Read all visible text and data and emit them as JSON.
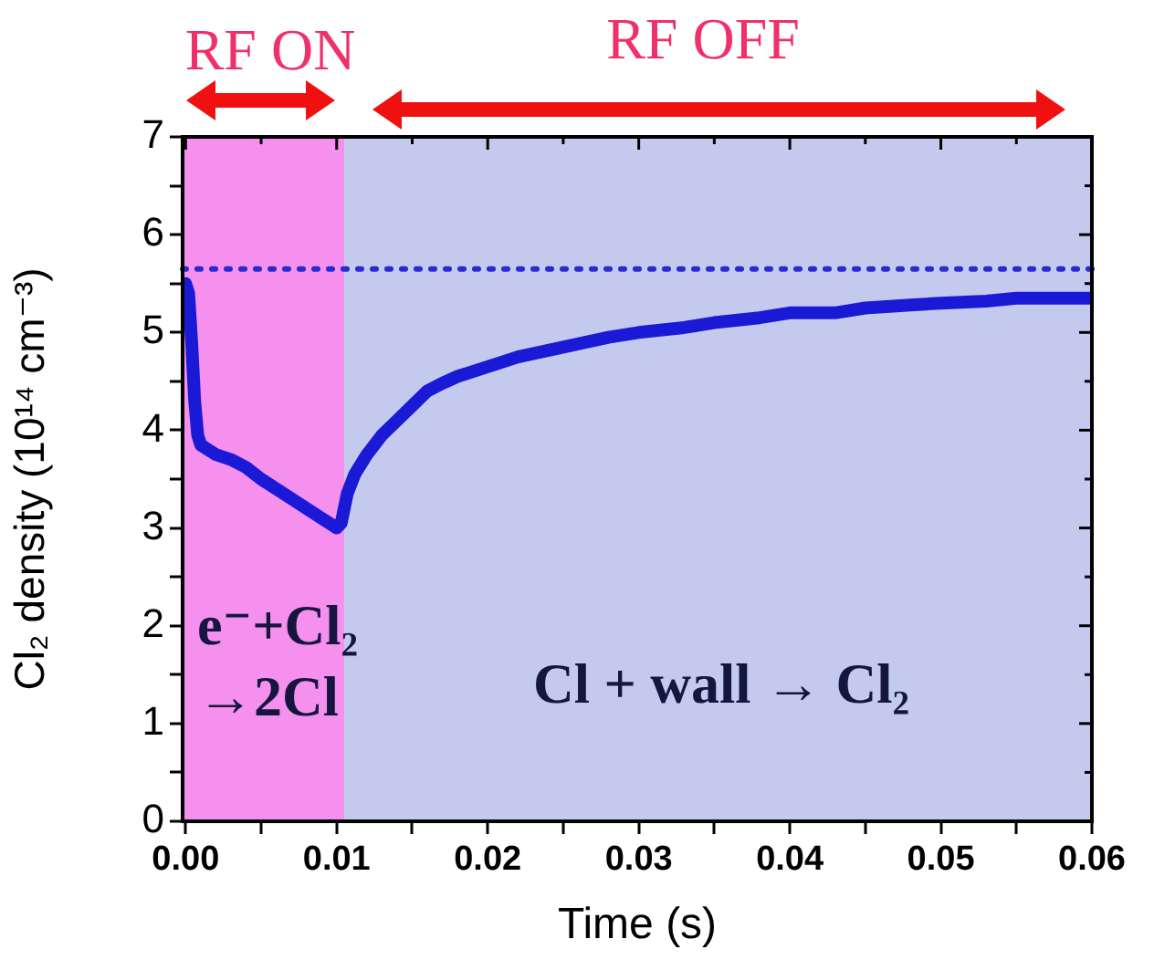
{
  "chart_data": {
    "type": "line",
    "xlabel": "Time (s)",
    "ylabel": "Cl₂ density (10¹⁴ cm⁻³)",
    "x": [
      0,
      0.0002,
      0.0004,
      0.0006,
      0.0008,
      0.001,
      0.0015,
      0.002,
      0.003,
      0.004,
      0.005,
      0.006,
      0.007,
      0.008,
      0.009,
      0.0095,
      0.01,
      0.0103,
      0.0107,
      0.0112,
      0.012,
      0.013,
      0.014,
      0.015,
      0.016,
      0.017,
      0.018,
      0.02,
      0.022,
      0.025,
      0.028,
      0.03,
      0.033,
      0.035,
      0.038,
      0.04,
      0.043,
      0.045,
      0.048,
      0.05,
      0.053,
      0.055,
      0.058,
      0.06
    ],
    "series": [
      {
        "color": "#1a1ad6",
        "values": [
          5.5,
          5.4,
          4.9,
          4.3,
          3.95,
          3.85,
          3.8,
          3.75,
          3.7,
          3.62,
          3.5,
          3.4,
          3.3,
          3.2,
          3.1,
          3.05,
          3.0,
          3.05,
          3.35,
          3.55,
          3.75,
          3.95,
          4.1,
          4.25,
          4.4,
          4.48,
          4.55,
          4.65,
          4.75,
          4.85,
          4.95,
          5.0,
          5.05,
          5.1,
          5.15,
          5.2,
          5.2,
          5.25,
          5.28,
          5.3,
          5.32,
          5.35,
          5.35,
          5.35
        ]
      }
    ],
    "xlim": [
      -0.0002,
      0.06
    ],
    "ylim": [
      0,
      7
    ],
    "xticks": [
      {
        "value": 0,
        "label": "0.00"
      },
      {
        "value": 0.005,
        "label": null
      },
      {
        "value": 0.01,
        "label": "0.01"
      },
      {
        "value": 0.015,
        "label": null
      },
      {
        "value": 0.02,
        "label": "0.02"
      },
      {
        "value": 0.025,
        "label": null
      },
      {
        "value": 0.03,
        "label": "0.03"
      },
      {
        "value": 0.035,
        "label": null
      },
      {
        "value": 0.04,
        "label": "0.04"
      },
      {
        "value": 0.045,
        "label": null
      },
      {
        "value": 0.05,
        "label": "0.05"
      },
      {
        "value": 0.055,
        "label": null
      },
      {
        "value": 0.06,
        "label": "0.06"
      }
    ],
    "yticks": [
      0,
      {
        "value": 0.5,
        "label": null
      },
      1,
      {
        "value": 1.5,
        "label": null
      },
      2,
      {
        "value": 2.5,
        "label": null
      },
      3,
      {
        "value": 3.5,
        "label": null
      },
      4,
      {
        "value": 4.5,
        "label": null
      },
      5,
      {
        "value": 5.5,
        "label": null
      },
      6,
      {
        "value": 6.5,
        "label": null
      },
      7
    ],
    "bands": [
      {
        "axis": "x",
        "from": -0.0002,
        "to": 0.0105,
        "color": "#f590ee"
      },
      {
        "axis": "x",
        "from": 0.0105,
        "to": 0.06,
        "color": "#c4caee"
      }
    ],
    "ref_lines": [
      {
        "axis": "y",
        "value": 5.65,
        "color": "#2a2ad0",
        "line_style": "dotted"
      }
    ],
    "annotations": [
      "RF ON",
      "RF OFF",
      "e⁻+Cl₂",
      "→2Cl",
      "Cl + wall → Cl₂"
    ],
    "marker": "none",
    "line_style": "solid",
    "grid": false,
    "legend": false
  }
}
